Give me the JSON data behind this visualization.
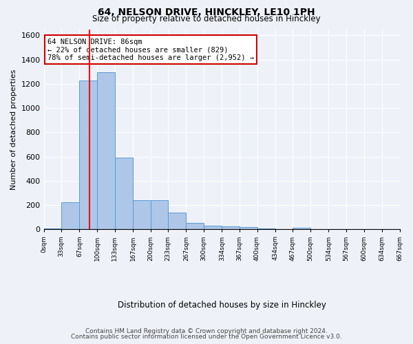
{
  "title": "64, NELSON DRIVE, HINCKLEY, LE10 1PH",
  "subtitle": "Size of property relative to detached houses in Hinckley",
  "xlabel": "Distribution of detached houses by size in Hinckley",
  "ylabel": "Number of detached properties",
  "bar_values": [
    10,
    220,
    1225,
    1295,
    590,
    240,
    240,
    140,
    55,
    28,
    22,
    18,
    10,
    0,
    15,
    0,
    0,
    0,
    0,
    0
  ],
  "bar_labels": [
    "0sqm",
    "33sqm",
    "67sqm",
    "100sqm",
    "133sqm",
    "167sqm",
    "200sqm",
    "233sqm",
    "267sqm",
    "300sqm",
    "334sqm",
    "367sqm",
    "400sqm",
    "434sqm",
    "467sqm",
    "500sqm",
    "534sqm",
    "567sqm",
    "600sqm",
    "634sqm",
    "667sqm"
  ],
  "bin_edges": [
    0,
    33,
    67,
    100,
    133,
    167,
    200,
    233,
    267,
    300,
    334,
    367,
    400,
    434,
    467,
    500,
    534,
    567,
    600,
    634,
    667
  ],
  "bar_color": "#aec6e8",
  "bar_edge_color": "#5b9bd5",
  "ylim": [
    0,
    1650
  ],
  "yticks": [
    0,
    200,
    400,
    600,
    800,
    1000,
    1200,
    1400,
    1600
  ],
  "property_line_x": 86,
  "property_line_label": "64 NELSON DRIVE: 86sqm",
  "annotation_line1": "← 22% of detached houses are smaller (829)",
  "annotation_line2": "78% of semi-detached houses are larger (2,952) →",
  "annotation_box_color": "#ffffff",
  "annotation_box_edge": "#cc0000",
  "footer_line1": "Contains HM Land Registry data © Crown copyright and database right 2024.",
  "footer_line2": "Contains public sector information licensed under the Open Government Licence v3.0.",
  "bg_color": "#eef2f8",
  "plot_bg_color": "#eef2f8",
  "grid_color": "#ffffff"
}
